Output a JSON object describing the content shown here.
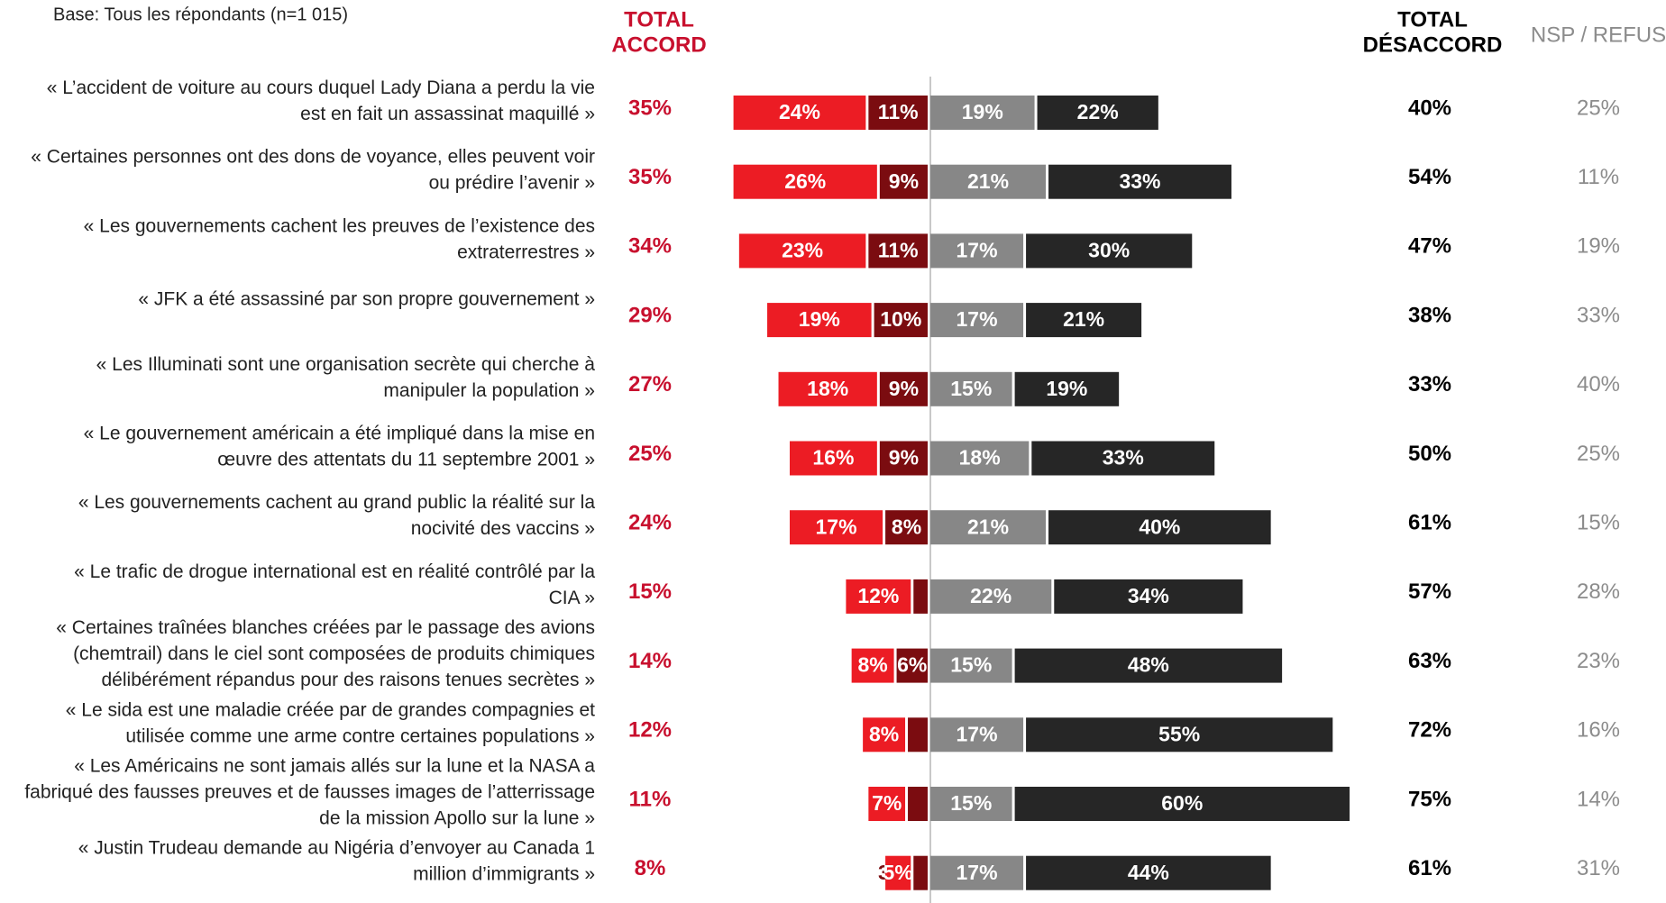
{
  "chart_data": {
    "type": "diverging_bar",
    "base": "Base: Tous les répondants (n=1 015)",
    "headers": {
      "accord": [
        "TOTAL",
        "ACCORD"
      ],
      "desaccord": [
        "TOTAL",
        "DÉSACCORD"
      ],
      "nsp": "NSP / REFUS"
    },
    "categories": [
      [
        "« L’accident de voiture au cours duquel Lady Diana a perdu la vie",
        "est en fait un assassinat maquillé »"
      ],
      [
        "« Certaines personnes ont des dons de voyance, elles peuvent voir",
        "ou prédire l’avenir »"
      ],
      [
        "« Les gouvernements cachent les preuves de l’existence des",
        "extraterrestres »"
      ],
      [
        "« JFK a été assassiné par son propre gouvernement »"
      ],
      [
        "« Les Illuminati sont une organisation secrète qui cherche à",
        "manipuler la population »"
      ],
      [
        "« Le gouvernement américain a été impliqué dans la mise en",
        "œuvre des attentats du 11 septembre 2001 »"
      ],
      [
        "« Les gouvernements cachent au grand public la réalité sur la",
        "nocivité des vaccins »"
      ],
      [
        "« Le trafic de drogue international est en réalité contrôlé par la",
        "CIA »"
      ],
      [
        "« Certaines traînées blanches créées par le passage des avions",
        "(chemtrail) dans le ciel sont composées de produits chimiques",
        "délibérément répandus pour des raisons tenues secrètes »"
      ],
      [
        "« Le sida est une maladie créée par de grandes compagnies et",
        "utilisée comme une arme contre certaines populations »"
      ],
      [
        "« Les Américains ne sont jamais allés sur la lune et la NASA a",
        "fabriqué des fausses preuves et de fausses images de l’atterrissage",
        "de la mission Apollo sur la lune »"
      ],
      [
        "« Justin Trudeau demande au Nigéria d’envoyer au Canada 1",
        "million d’immigrants »"
      ]
    ],
    "series": [
      {
        "side": "left",
        "color": "#7b0c10",
        "values": [
          11,
          9,
          11,
          10,
          9,
          9,
          8,
          3,
          6,
          4,
          4,
          3
        ],
        "value_labels": [
          "11%",
          "9%",
          "11%",
          "10%",
          "9%",
          "9%",
          "8%",
          "3%",
          "6%",
          "4%",
          "4%",
          "3%"
        ]
      },
      {
        "side": "left",
        "color": "#ec1c24",
        "values": [
          24,
          26,
          23,
          19,
          18,
          16,
          17,
          12,
          8,
          8,
          7,
          5
        ],
        "value_labels": [
          "24%",
          "26%",
          "23%",
          "19%",
          "18%",
          "16%",
          "17%",
          "12%",
          "8%",
          "8%",
          "7%",
          "5%"
        ]
      },
      {
        "side": "right",
        "color": "#878787",
        "values": [
          19,
          21,
          17,
          17,
          15,
          18,
          21,
          22,
          15,
          17,
          15,
          17
        ],
        "value_labels": [
          "19%",
          "21%",
          "17%",
          "17%",
          "15%",
          "18%",
          "21%",
          "22%",
          "15%",
          "17%",
          "15%",
          "17%"
        ]
      },
      {
        "side": "right",
        "color": "#262626",
        "values": [
          22,
          33,
          30,
          21,
          19,
          33,
          40,
          34,
          48,
          55,
          60,
          44
        ],
        "value_labels": [
          "22%",
          "33%",
          "30%",
          "21%",
          "19%",
          "33%",
          "40%",
          "34%",
          "48%",
          "55%",
          "60%",
          "44%"
        ]
      }
    ],
    "total_accord": {
      "color": "#c8102e",
      "values": [
        35,
        35,
        34,
        29,
        27,
        25,
        24,
        15,
        14,
        12,
        11,
        8
      ],
      "value_labels": [
        "35%",
        "35%",
        "34%",
        "29%",
        "27%",
        "25%",
        "24%",
        "15%",
        "14%",
        "12%",
        "11%",
        "8%"
      ]
    },
    "total_desaccord": {
      "color": "#000000",
      "values": [
        40,
        54,
        47,
        38,
        33,
        50,
        61,
        57,
        63,
        72,
        75,
        61
      ],
      "value_labels": [
        "40%",
        "54%",
        "47%",
        "38%",
        "33%",
        "50%",
        "61%",
        "57%",
        "63%",
        "72%",
        "75%",
        "61%"
      ]
    },
    "nsp": {
      "color": "#8c8c8c",
      "values": [
        25,
        11,
        19,
        33,
        40,
        25,
        15,
        28,
        23,
        16,
        14,
        31
      ],
      "value_labels": [
        "25%",
        "11%",
        "19%",
        "33%",
        "40%",
        "25%",
        "15%",
        "28%",
        "23%",
        "16%",
        "14%",
        "31%"
      ]
    }
  }
}
